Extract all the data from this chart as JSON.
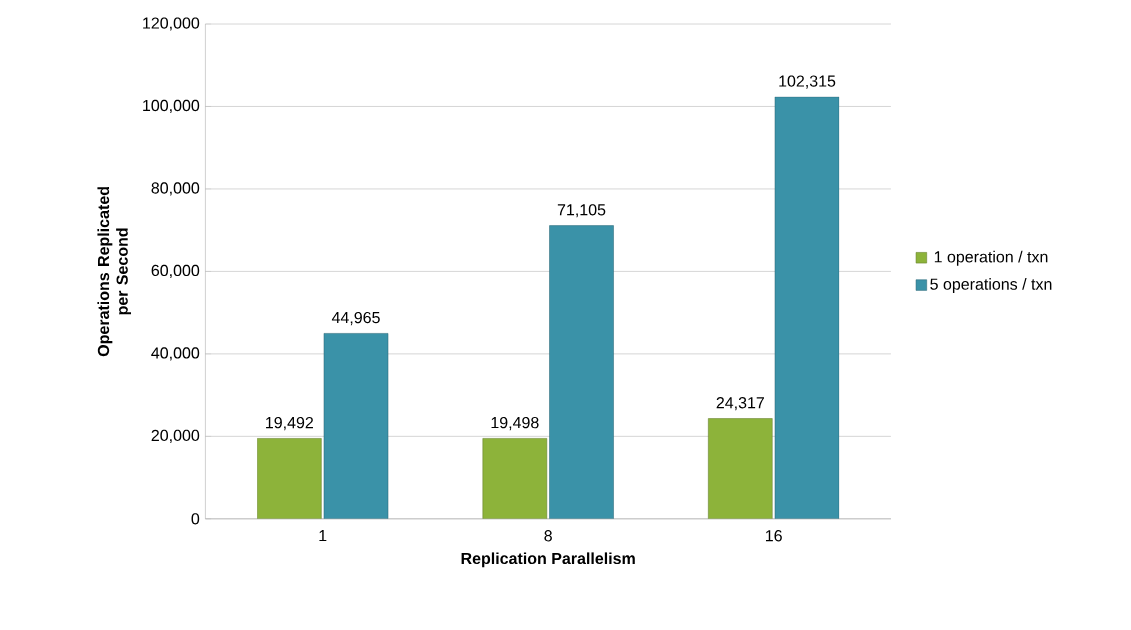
{
  "chart_data": {
    "type": "bar",
    "xlabel": "Replication Parallelism",
    "ylabel": "Operations Replicated per Second",
    "categories": [
      "1",
      "8",
      "16"
    ],
    "series": [
      {
        "name": "1 operation / txn",
        "color": "#8db33a",
        "values": [
          19492,
          19498,
          24317
        ],
        "value_labels": [
          "19,492",
          "19,498",
          "24,317"
        ]
      },
      {
        "name": "5 operations / txn",
        "color": "#3a92a8",
        "values": [
          44965,
          71105,
          102315
        ],
        "value_labels": [
          "44,965",
          "71,105",
          "102,315"
        ]
      }
    ],
    "ylim": [
      0,
      120000
    ],
    "yticks": [
      {
        "value": 0,
        "label": "0"
      },
      {
        "value": 20000,
        "label": "20,000"
      },
      {
        "value": 40000,
        "label": "40,000"
      },
      {
        "value": 60000,
        "label": "60,000"
      },
      {
        "value": 80000,
        "label": "80,000"
      },
      {
        "value": 100000,
        "label": "100,000"
      },
      {
        "value": 120000,
        "label": "120,000"
      }
    ],
    "grid": "y",
    "legend": "right"
  }
}
